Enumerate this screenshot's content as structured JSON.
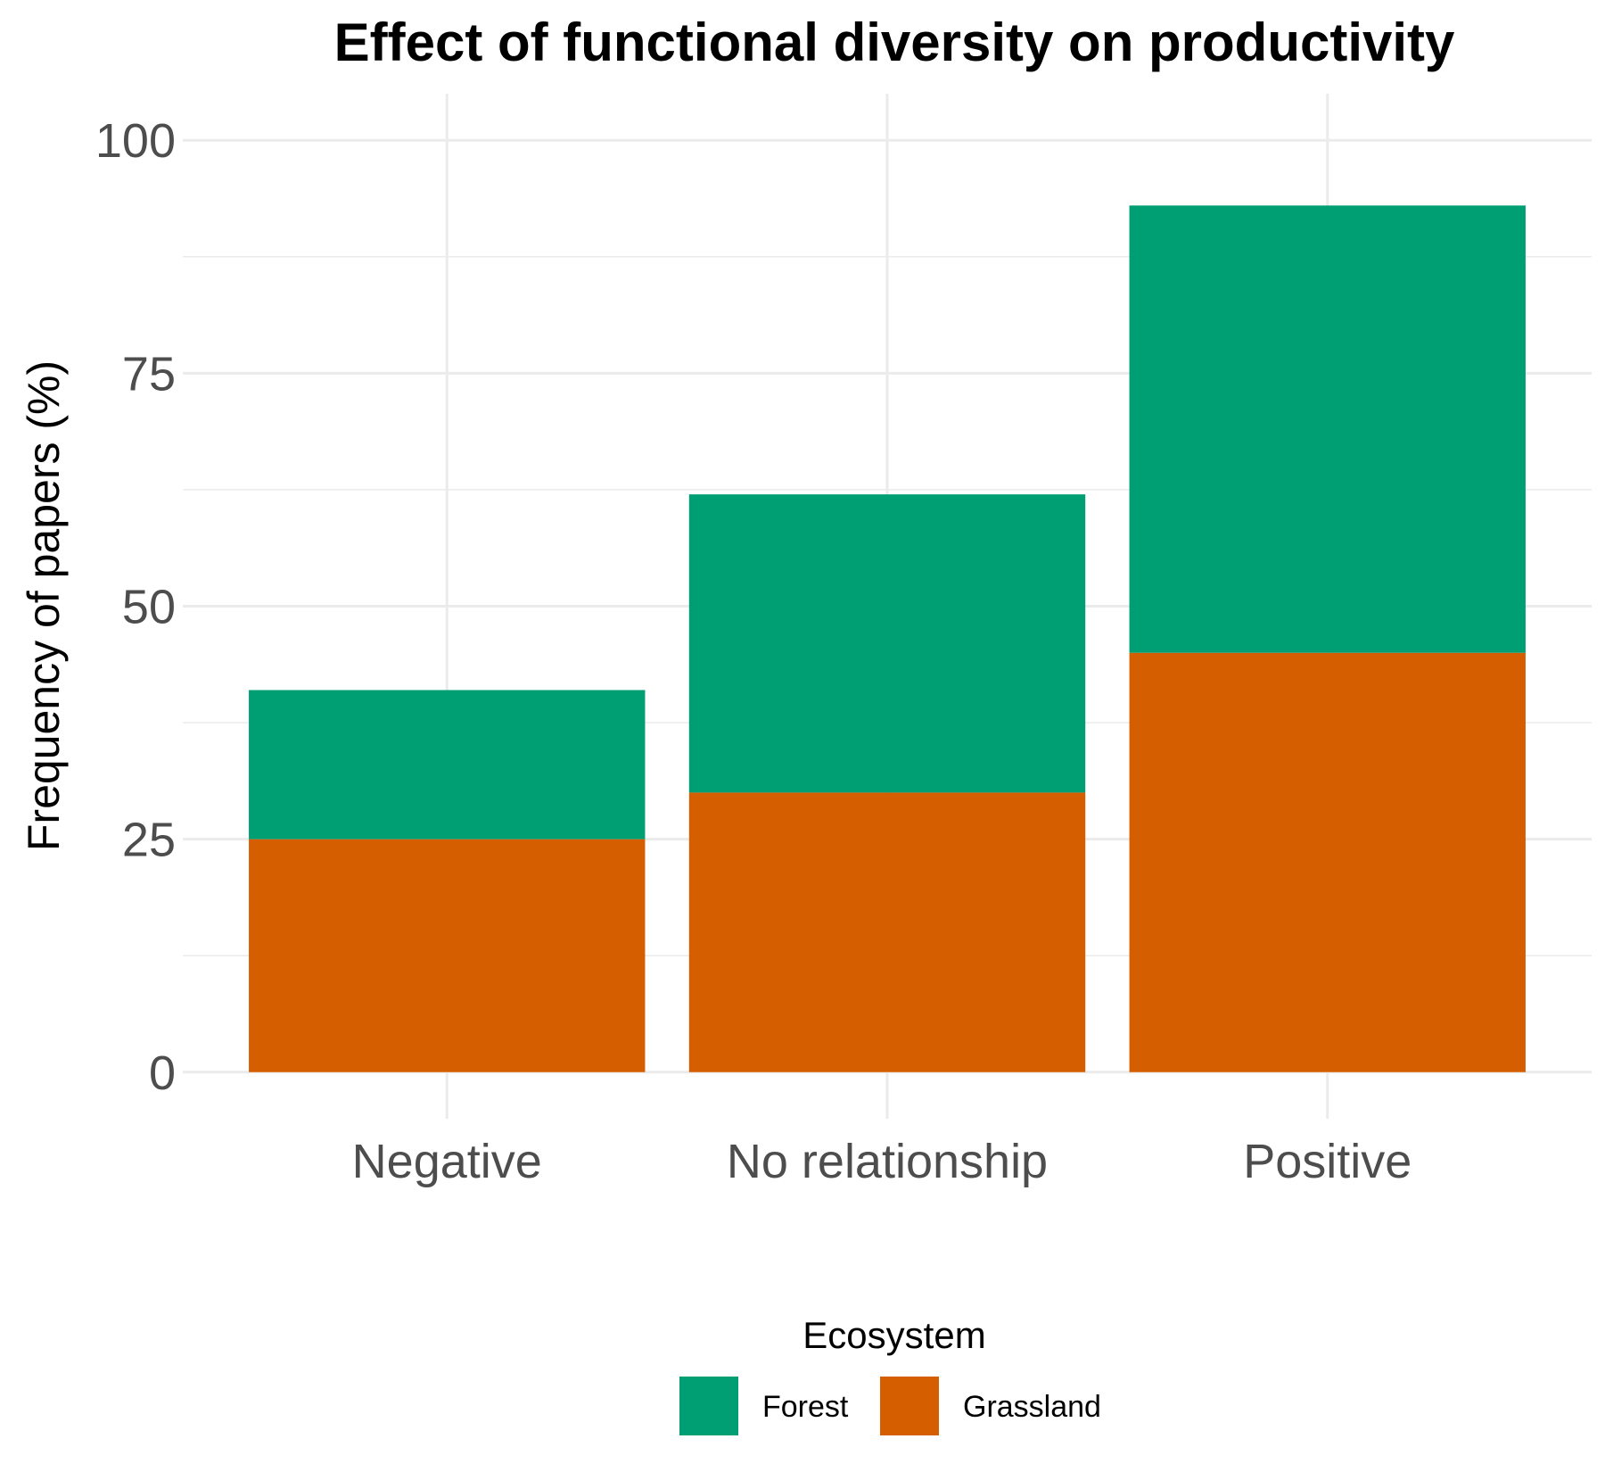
{
  "chart_data": {
    "type": "bar",
    "stacked": true,
    "title": "Effect of functional diversity on productivity",
    "xlabel": "",
    "ylabel": "Frequency of papers (%)",
    "categories": [
      "Negative",
      "No relationship",
      "Positive"
    ],
    "series": [
      {
        "name": "Grassland",
        "color": "#d55e00",
        "values": [
          25,
          30,
          45
        ]
      },
      {
        "name": "Forest",
        "color": "#009e73",
        "values": [
          16,
          32,
          48
        ]
      }
    ],
    "ylim": [
      -5,
      105
    ],
    "yticks": [
      "0",
      "25",
      "50",
      "75",
      "100"
    ],
    "ytick_values": [
      0,
      25,
      50,
      75,
      100
    ],
    "grid": true,
    "legend": {
      "title": "Ecosystem",
      "position": "bottom",
      "order": [
        "Forest",
        "Grassland"
      ]
    }
  }
}
